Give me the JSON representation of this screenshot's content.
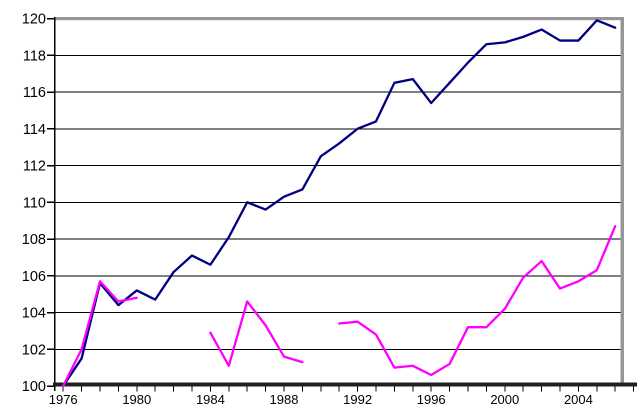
{
  "chart_data": {
    "type": "line",
    "title": "",
    "xlabel": "",
    "ylabel": "",
    "x": [
      1976,
      1977,
      1978,
      1979,
      1980,
      1981,
      1982,
      1983,
      1984,
      1985,
      1986,
      1987,
      1988,
      1989,
      1990,
      1991,
      1992,
      1993,
      1994,
      1995,
      1996,
      1997,
      1998,
      1999,
      2000,
      2001,
      2002,
      2003,
      2004,
      2005,
      2006
    ],
    "series": [
      {
        "name": "navy",
        "color": "#000080",
        "values": [
          100.0,
          101.5,
          105.6,
          104.4,
          105.2,
          104.7,
          106.2,
          107.1,
          106.6,
          108.1,
          110.0,
          109.6,
          110.3,
          110.7,
          112.5,
          113.2,
          114.0,
          114.4,
          116.5,
          116.7,
          115.4,
          116.5,
          117.6,
          118.6,
          118.7,
          119.0,
          119.4,
          118.8,
          118.8,
          119.9,
          119.5
        ]
      },
      {
        "name": "magenta",
        "color": "#FF00FF",
        "values": [
          100.0,
          102.0,
          105.7,
          104.6,
          104.8,
          null,
          null,
          null,
          102.9,
          101.1,
          104.6,
          103.3,
          101.6,
          101.3,
          null,
          103.4,
          103.5,
          102.8,
          101.0,
          101.1,
          100.6,
          101.2,
          103.2,
          103.2,
          104.2,
          105.9,
          106.8,
          105.3,
          105.7,
          106.3,
          108.7
        ]
      }
    ],
    "ylim": [
      100,
      120
    ],
    "ytick_step": 2,
    "y_tick_labels": [
      "100",
      "102",
      "104",
      "106",
      "108",
      "110",
      "112",
      "114",
      "116",
      "118",
      "120"
    ],
    "x_tick_labels": [
      "1976",
      "1980",
      "1984",
      "1988",
      "1992",
      "1996",
      "2000",
      "2004"
    ],
    "x_label_interval": 4,
    "x_minor_tick_every_year": true,
    "grid": true,
    "legend": "none",
    "colors": {
      "plot_border": "#969696",
      "gridline": "#000000",
      "axis_band": "#1f1f1f",
      "tick": "#000000",
      "text": "#000000",
      "background": "#ffffff"
    }
  }
}
